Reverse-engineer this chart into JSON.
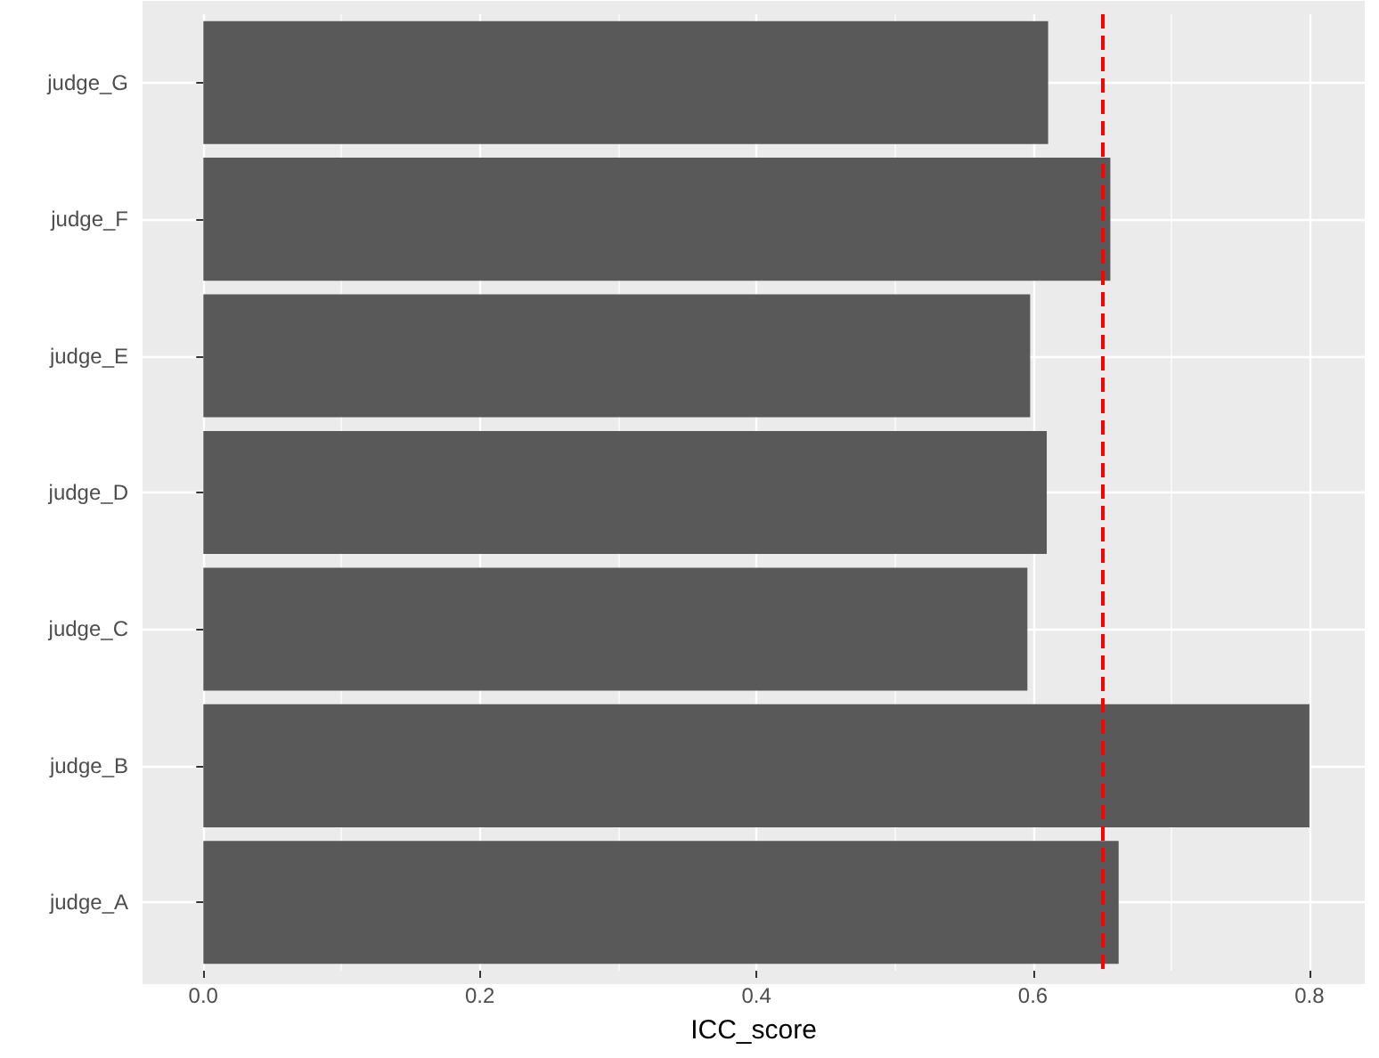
{
  "chart_data": {
    "type": "bar",
    "orientation": "horizontal",
    "xlabel": "ICC_score",
    "categories": [
      "judge_G",
      "judge_F",
      "judge_E",
      "judge_D",
      "judge_C",
      "judge_B",
      "judge_A"
    ],
    "values": [
      0.611,
      0.656,
      0.598,
      0.61,
      0.596,
      0.8,
      0.662
    ],
    "color": "#595959",
    "xlim": [
      -0.044,
      0.84
    ],
    "xticks": [
      {
        "value": 0,
        "label": "0.0"
      },
      0.2,
      0.4,
      0.6,
      0.8
    ],
    "ref_lines": [
      {
        "axis": "x",
        "value": 0.647,
        "color": "#ff0000",
        "line_style": "dashed"
      }
    ],
    "grid": true
  }
}
